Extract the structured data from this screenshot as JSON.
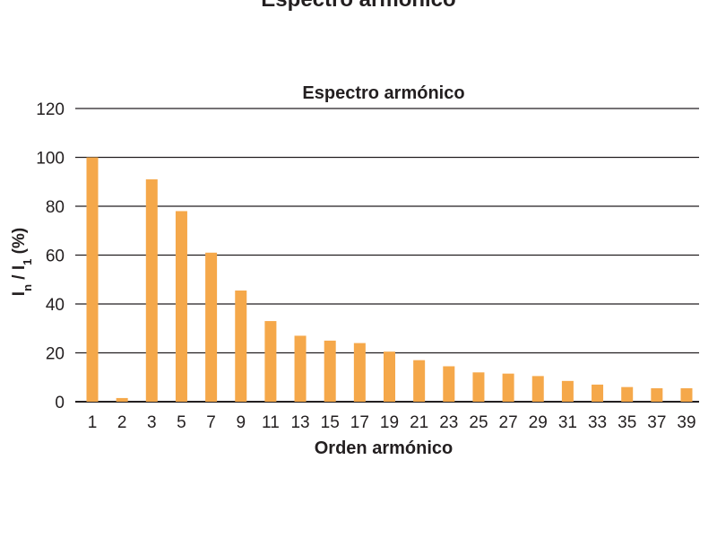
{
  "top_partial_text": "Espectro armónico",
  "chart_data": {
    "type": "bar",
    "title": "Espectro armónico",
    "xlabel": "Orden armónico",
    "ylabel": {
      "parts": [
        "I",
        "n",
        " / I",
        "1",
        " (%)"
      ]
    },
    "ylim": [
      0,
      120
    ],
    "yticks": [
      0,
      20,
      40,
      60,
      80,
      100,
      120
    ],
    "grid": true,
    "bar_color": "#f5a84a",
    "categories": [
      "1",
      "2",
      "3",
      "5",
      "7",
      "9",
      "11",
      "13",
      "15",
      "17",
      "19",
      "21",
      "23",
      "25",
      "27",
      "29",
      "31",
      "33",
      "35",
      "37",
      "39"
    ],
    "values": [
      100,
      1.5,
      91,
      78,
      61,
      45.5,
      33,
      27,
      25,
      24,
      20.5,
      17,
      14.5,
      12,
      11.5,
      10.5,
      8.5,
      7,
      6,
      5.5,
      5.5
    ]
  }
}
